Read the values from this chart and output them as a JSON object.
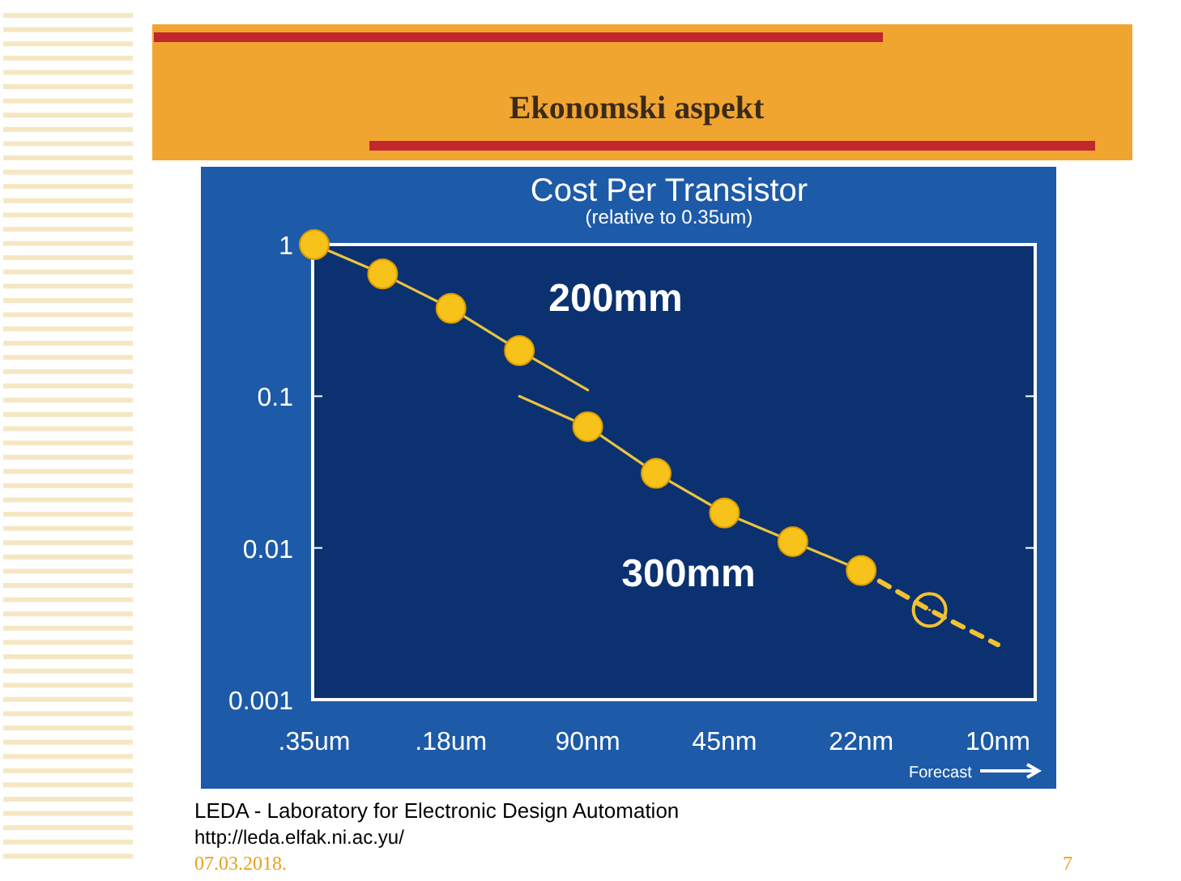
{
  "chart_data": {
    "type": "line",
    "title": "Cost Per Transistor",
    "subtitle": "(relative to 0.35um)",
    "categories": [
      ".35um",
      null,
      ".18um",
      null,
      "90nm",
      null,
      "45nm",
      null,
      "22nm",
      null,
      "10nm"
    ],
    "series": [
      {
        "name": "200mm",
        "color": "#e8c440",
        "marker": "none",
        "line_style": "solid",
        "values": [
          1,
          0.64,
          0.38,
          0.2,
          0.11,
          null,
          null,
          null,
          null,
          null,
          null
        ]
      },
      {
        "name": "300mm",
        "color": "#e8c440",
        "marker": "none",
        "line_style": "solid",
        "values": [
          null,
          null,
          null,
          0.1,
          0.063,
          0.031,
          0.017,
          0.011,
          0.0071,
          null,
          null
        ]
      },
      {
        "type": "line",
        "color": "#f2c230",
        "marker": "none",
        "line_style": "dashed",
        "values": [
          null,
          null,
          null,
          null,
          null,
          null,
          null,
          null,
          0.0071,
          0.0039,
          0.0023
        ]
      },
      {
        "type": "scatter",
        "color": "#f7c21a",
        "marker": "circle",
        "values": [
          1,
          0.64,
          0.38,
          0.2,
          0.063,
          0.031,
          0.017,
          0.011,
          0.0071,
          null,
          null
        ]
      },
      {
        "type": "line",
        "color": "#f2c230",
        "marker": "circle",
        "values": [
          null,
          null,
          null,
          null,
          null,
          null,
          null,
          null,
          null,
          0.0039,
          null
        ]
      }
    ],
    "log": "y",
    "ylim": [
      0.001,
      1
    ],
    "yticks": [
      {
        "value": 0.001,
        "label": "0.001"
      },
      {
        "value": 0.01,
        "label": "0.01"
      },
      {
        "value": 0.1,
        "label": "0.1"
      },
      1
    ],
    "grid": false,
    "annotations": [
      "Ekonomski aspekt",
      "Forecast",
      "LEDA - Laboratory for Electronic Design Automation",
      "http://leda.elfak.ni.ac.yu/",
      "07.03.2018.",
      "7"
    ]
  }
}
